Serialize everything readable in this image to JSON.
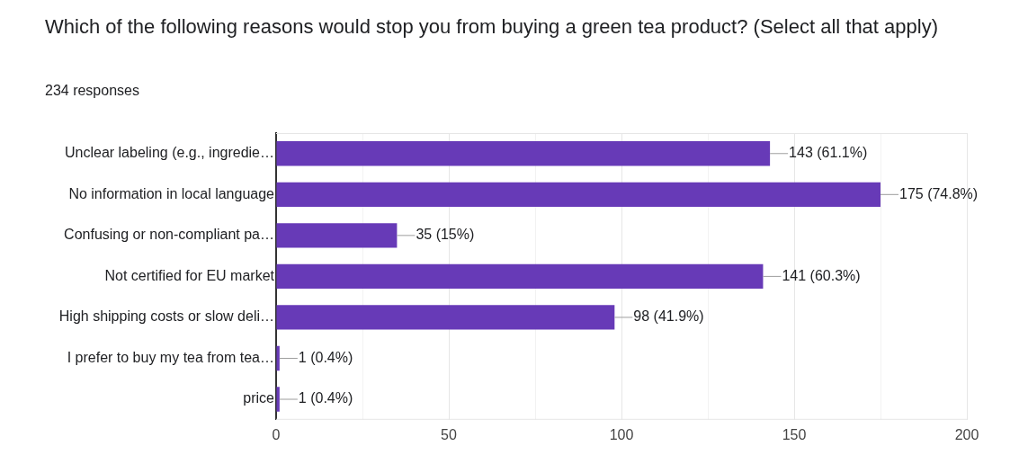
{
  "chart_data": {
    "type": "bar",
    "orientation": "horizontal",
    "title": "Which of the following reasons would stop you from buying a green tea product? (Select all that apply)",
    "subtitle": "234 responses",
    "categories": [
      "Unclear labeling (e.g., ingredie…",
      "No information in local language",
      "Confusing or non-compliant pa…",
      "Not certified for EU market",
      "High shipping costs or slow deli…",
      "I prefer to buy my tea from tea…",
      "price"
    ],
    "values": [
      143,
      175,
      35,
      141,
      98,
      1,
      1
    ],
    "value_labels": [
      "143 (61.1%)",
      "175 (74.8%)",
      "35 (15%)",
      "141 (60.3%)",
      "98 (41.9%)",
      "1 (0.4%)",
      "1 (0.4%)"
    ],
    "color": "#673ab7",
    "xlim": [
      0,
      200
    ],
    "xticks": [
      0,
      {
        "value": 25,
        "label": null
      },
      50,
      {
        "value": 75,
        "label": null
      },
      100,
      {
        "value": 125,
        "label": null
      },
      150,
      {
        "value": 175,
        "label": null
      },
      200
    ],
    "grid": "x",
    "legend": false
  }
}
